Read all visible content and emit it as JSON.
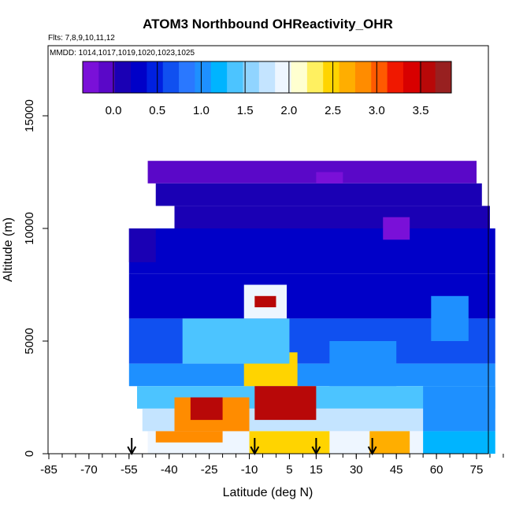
{
  "chart_data": {
    "type": "heatmap",
    "title": "ATOM3 Northbound OHReactivity_OHR",
    "subtitle_flights": "Flts: 7,8,9,10,11,12",
    "subtitle_dates": "MMDD: 1014,1017,1019,1020,1023,1025",
    "xlabel": "Latitude (deg N)",
    "ylabel": "Altitude (m)",
    "xlim": [
      -85,
      85
    ],
    "ylim": [
      0,
      17500
    ],
    "x_ticks": [
      -85,
      -70,
      -55,
      -40,
      -25,
      -10,
      5,
      15,
      30,
      45,
      60,
      75
    ],
    "x_tick_labels": [
      "-85",
      "-70",
      "-55",
      "-40",
      "-25",
      "-10",
      "5",
      "15",
      "30",
      "45",
      "60",
      "75"
    ],
    "y_ticks": [
      0,
      5000,
      10000,
      15000
    ],
    "y_tick_labels": [
      "0",
      "5000",
      "10000",
      "15000"
    ],
    "colorbar": {
      "range": [
        -0.35,
        3.85
      ],
      "ticks": [
        0.0,
        0.5,
        1.0,
        1.5,
        2.0,
        2.5,
        3.0,
        3.5
      ],
      "tick_labels": [
        "0.0",
        "0.5",
        "1.0",
        "1.5",
        "2.0",
        "2.5",
        "3.0",
        "3.5"
      ],
      "colors": [
        "#7a10d8",
        "#5a08c8",
        "#1a00b4",
        "#0000c8",
        "#0020e0",
        "#1050f0",
        "#2a78ff",
        "#1e90ff",
        "#00b4ff",
        "#4cc4ff",
        "#90d4ff",
        "#c4e4ff",
        "#eef6ff",
        "#ffffd0",
        "#fff060",
        "#ffd400",
        "#ffae00",
        "#ff8c00",
        "#ff5a00",
        "#f01800",
        "#d80000",
        "#b80808",
        "#982020"
      ]
    },
    "arrows_latitude": [
      -54,
      -8,
      15,
      36
    ],
    "grid": false,
    "regions": [
      {
        "lat": [
          -48,
          75
        ],
        "alt": [
          12000,
          13000
        ],
        "value": 0.0
      },
      {
        "lat": [
          -45,
          77
        ],
        "alt": [
          11000,
          12000
        ],
        "value": 0.1
      },
      {
        "lat": [
          -38,
          80
        ],
        "alt": [
          10000,
          11000
        ],
        "value": 0.1
      },
      {
        "lat": [
          -55,
          82
        ],
        "alt": [
          8000,
          10000
        ],
        "value": 0.2
      },
      {
        "lat": [
          -55,
          82
        ],
        "alt": [
          6000,
          8000
        ],
        "value": 0.3
      },
      {
        "lat": [
          -55,
          82
        ],
        "alt": [
          4000,
          6000
        ],
        "value": 0.7
      },
      {
        "lat": [
          -55,
          82
        ],
        "alt": [
          3000,
          4000
        ],
        "value": 1.0
      },
      {
        "lat": [
          -52,
          82
        ],
        "alt": [
          2000,
          3000
        ],
        "value": 1.4
      },
      {
        "lat": [
          -50,
          82
        ],
        "alt": [
          1000,
          2000
        ],
        "value": 1.8
      },
      {
        "lat": [
          -48,
          82
        ],
        "alt": [
          0,
          1000
        ],
        "value": 2.0
      },
      {
        "lat": [
          -12,
          4
        ],
        "alt": [
          6000,
          7500
        ],
        "value": 2.0
      },
      {
        "lat": [
          -8,
          0
        ],
        "alt": [
          6500,
          7000
        ],
        "value": 3.5
      },
      {
        "lat": [
          -12,
          8
        ],
        "alt": [
          3000,
          4500
        ],
        "value": 2.5
      },
      {
        "lat": [
          -8,
          15
        ],
        "alt": [
          1500,
          3000
        ],
        "value": 3.6
      },
      {
        "lat": [
          -38,
          -10
        ],
        "alt": [
          1000,
          2500
        ],
        "value": 2.9
      },
      {
        "lat": [
          -32,
          -20
        ],
        "alt": [
          1500,
          2500
        ],
        "value": 3.6
      },
      {
        "lat": [
          -45,
          -20
        ],
        "alt": [
          500,
          1000
        ],
        "value": 2.8
      },
      {
        "lat": [
          -10,
          20
        ],
        "alt": [
          0,
          1000
        ],
        "value": 2.5
      },
      {
        "lat": [
          35,
          50
        ],
        "alt": [
          0,
          1000
        ],
        "value": 2.7
      },
      {
        "lat": [
          -35,
          5
        ],
        "alt": [
          4000,
          6000
        ],
        "value": 1.4
      },
      {
        "lat": [
          20,
          45
        ],
        "alt": [
          3000,
          5000
        ],
        "value": 1.0
      },
      {
        "lat": [
          55,
          82
        ],
        "alt": [
          1000,
          3000
        ],
        "value": 1.1
      },
      {
        "lat": [
          55,
          82
        ],
        "alt": [
          0,
          1000
        ],
        "value": 1.2
      },
      {
        "lat": [
          40,
          50
        ],
        "alt": [
          9500,
          10500
        ],
        "value": -0.2
      },
      {
        "lat": [
          15,
          25
        ],
        "alt": [
          12000,
          12500
        ],
        "value": -0.2
      },
      {
        "lat": [
          58,
          72
        ],
        "alt": [
          5000,
          7000
        ],
        "value": 1.0
      },
      {
        "lat": [
          -55,
          -45
        ],
        "alt": [
          8500,
          10000
        ],
        "value": 0.1
      }
    ]
  }
}
